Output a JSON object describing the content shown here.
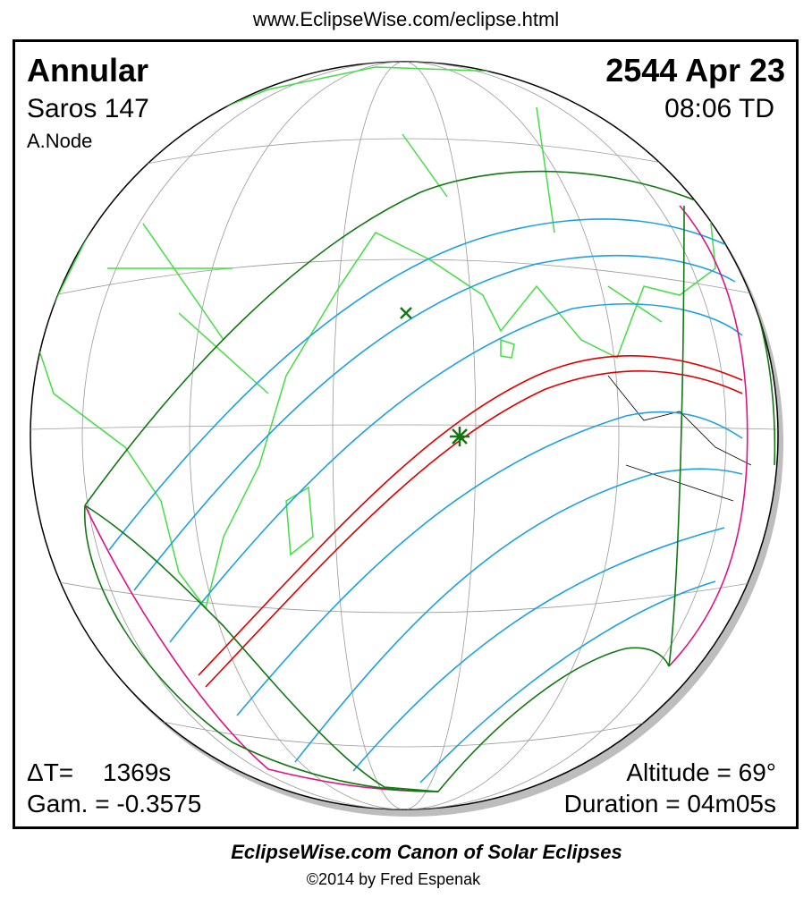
{
  "header": {
    "url": "www.EclipseWise.com/eclipse.html"
  },
  "eclipse": {
    "type": "Annular",
    "date": "2544 Apr 23",
    "saros": "Saros 147",
    "time": "08:06 TD",
    "node": "A.Node",
    "delta_t_label": "ΔT=",
    "delta_t": "1369s",
    "gamma": "Gam. = -0.3575",
    "altitude": "Altitude = 69°",
    "duration": "Duration = 04m05s"
  },
  "footer": {
    "title": "EclipseWise.com Canon of Solar Eclipses",
    "copyright": "©2014 by Fred Espenak"
  }
}
